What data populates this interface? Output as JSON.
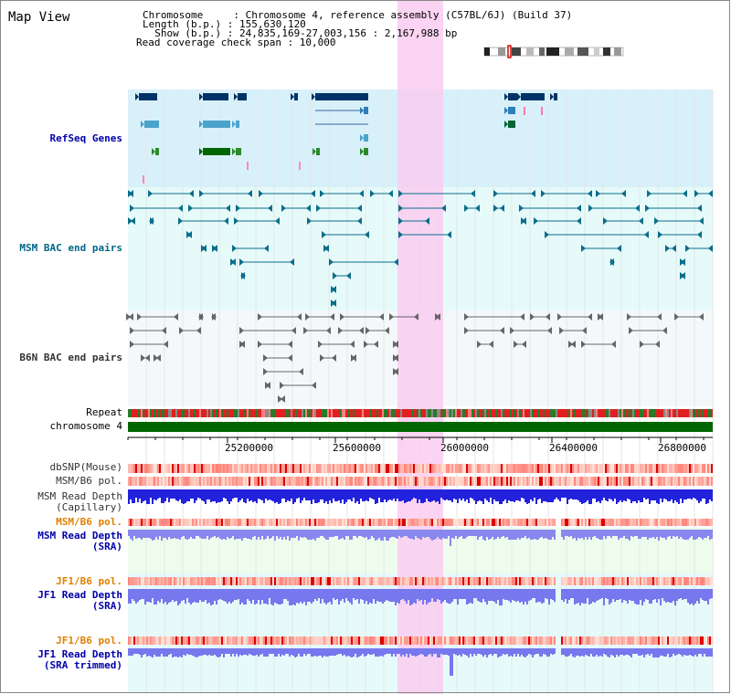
{
  "title": "Map View",
  "info": {
    "chromosome_line": "Chromosome     : Chromosome 4, reference assembly (C57BL/6J) (Build 37)",
    "length_line": "Length (b.p.) : 155,630,120",
    "show_line": "  Show (b.p.) : 24,835,169-27,003,156 : 2,167,988 bp",
    "coverage_line": "Read coverage check span : 10,000"
  },
  "colors": {
    "refseq_label": "#0000aa",
    "msm_bac_label": "#006688",
    "b6n_bac_label": "#333333",
    "sra_label": "#0000aa",
    "pol_orange": "#e08000",
    "highlight": "#f9ccf0",
    "refseq_bg": "#d8f0fa",
    "bac_bg": "#e6fafa",
    "chromosome_green": "#006600"
  },
  "tracks": {
    "refseq": "RefSeq Genes",
    "msm_bac": "MSM BAC end pairs",
    "b6n_bac": "B6N BAC end pairs",
    "repeat": "Repeat",
    "chromosome": "chromosome 4",
    "dbsnp": "dbSNP(Mouse)",
    "msm_b6_pol_1": "MSM/B6 pol.",
    "msm_depth_cap_1": "MSM Read Depth",
    "msm_depth_cap_2": "(Capillary)",
    "msm_b6_pol_2": "MSM/B6 pol.",
    "msm_depth_sra_1": "MSM Read Depth",
    "msm_depth_sra_2": "(SRA)",
    "jf1_b6_pol_1": "JF1/B6 pol.",
    "jf1_depth_1": "JF1 Read Depth",
    "jf1_depth_2": "(SRA)",
    "jf1_b6_pol_2": "JF1/B6 pol.",
    "jf1_trim_1": "JF1 Read Depth",
    "jf1_trim_2": "(SRA trimmed)"
  },
  "axis": {
    "ticks": [
      "25200000",
      "25600000",
      "26000000",
      "26400000",
      "26800000"
    ]
  },
  "icons": [
    "chromosome-ideogram-icon",
    "gene-arrow-icon",
    "bac-end-marker-icon"
  ]
}
